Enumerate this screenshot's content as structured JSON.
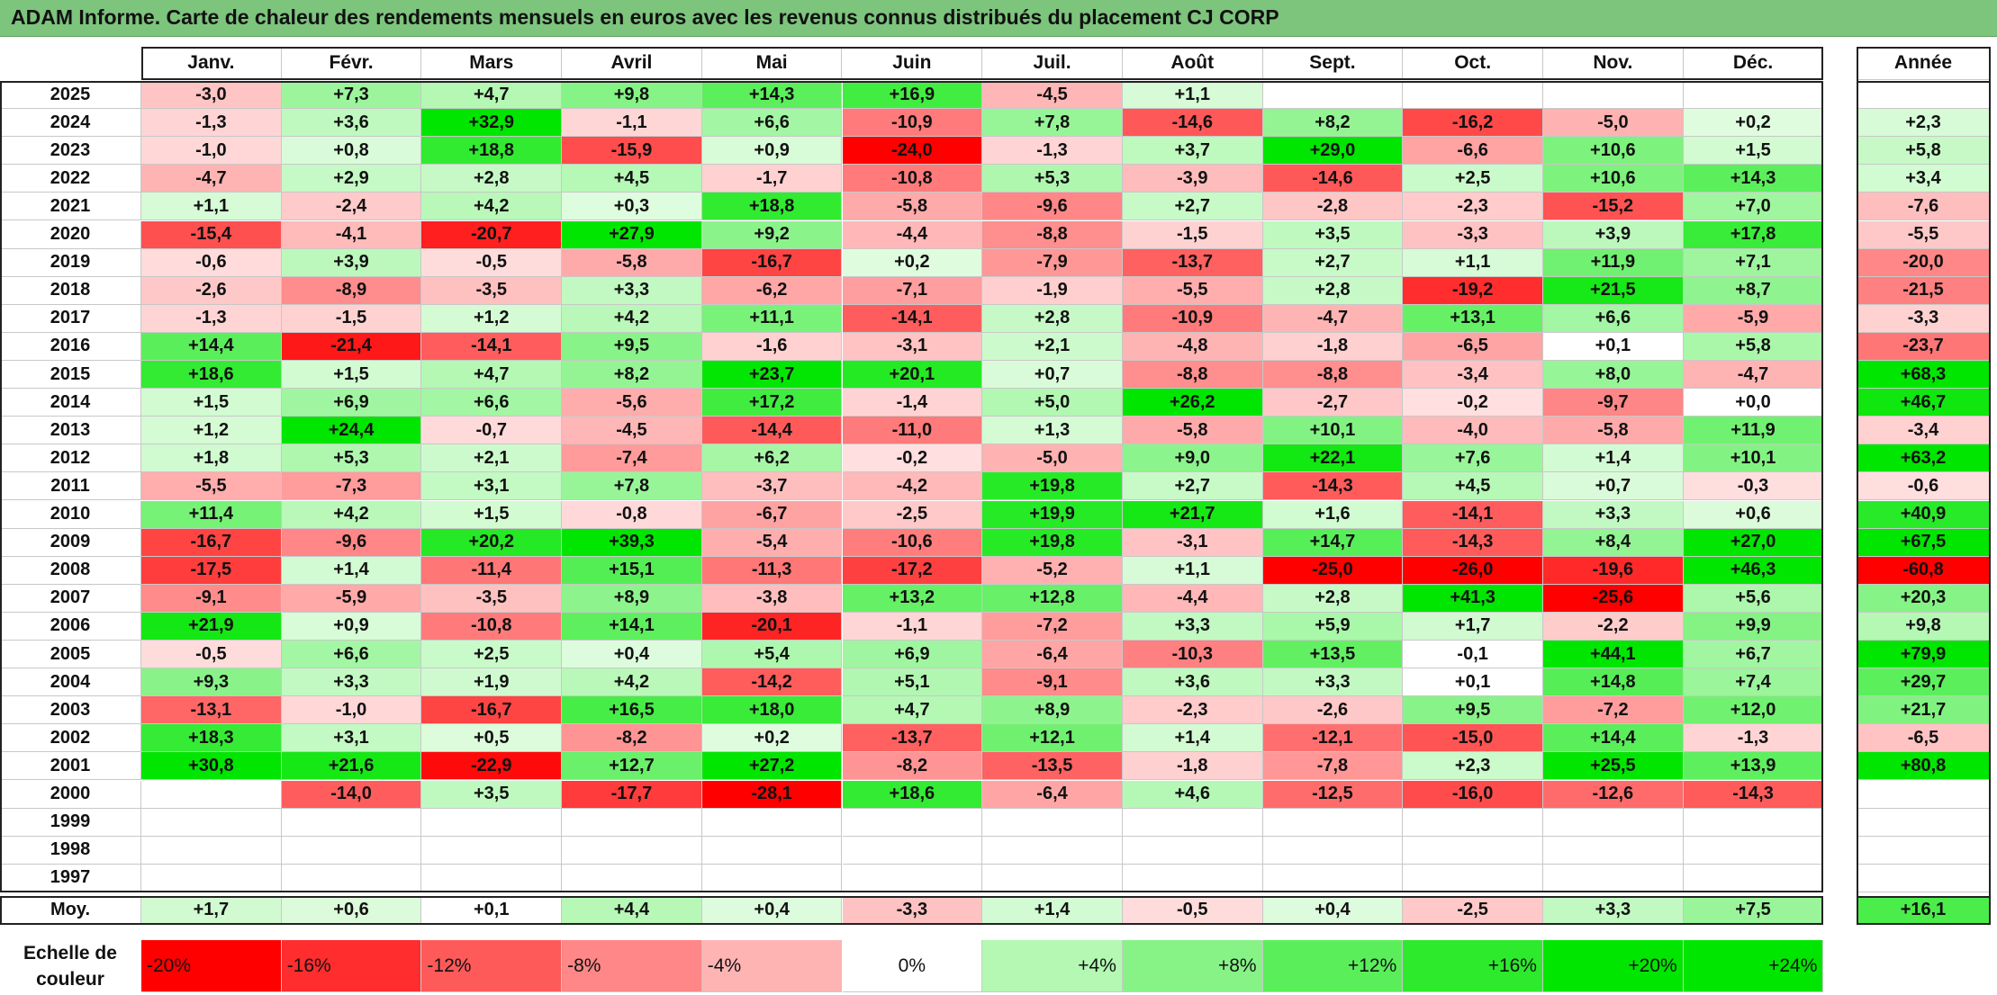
{
  "title": "ADAM Informe. Carte de chaleur des rendements mensuels en euros avec les revenus connus distribués du placement CJ CORP",
  "colors": {
    "title_bg": "#7dc47d",
    "neg": "#ff0000",
    "pos": "#00e000",
    "neutral": "#ffffff"
  },
  "chart_data": {
    "type": "heatmap",
    "title": "ADAM Informe. Carte de chaleur des rendements mensuels en euros avec les revenus connus distribués du placement CJ CORP",
    "months": [
      "Janv.",
      "Févr.",
      "Mars",
      "Avril",
      "Mai",
      "Juin",
      "Juil.",
      "Août",
      "Sept.",
      "Oct.",
      "Nov.",
      "Déc."
    ],
    "year_header": "Année",
    "rows": [
      {
        "year": "2025",
        "values": [
          "-3,0",
          "+7,3",
          "+4,7",
          "+9,8",
          "+14,3",
          "+16,9",
          "-4,5",
          "+1,1",
          "",
          "",
          "",
          ""
        ],
        "annual": ""
      },
      {
        "year": "2024",
        "values": [
          "-1,3",
          "+3,6",
          "+32,9",
          "-1,1",
          "+6,6",
          "-10,9",
          "+7,8",
          "-14,6",
          "+8,2",
          "-16,2",
          "-5,0",
          "+0,2"
        ],
        "annual": "+2,3"
      },
      {
        "year": "2023",
        "values": [
          "-1,0",
          "+0,8",
          "+18,8",
          "-15,9",
          "+0,9",
          "-24,0",
          "-1,3",
          "+3,7",
          "+29,0",
          "-6,6",
          "+10,6",
          "+1,5"
        ],
        "annual": "+5,8"
      },
      {
        "year": "2022",
        "values": [
          "-4,7",
          "+2,9",
          "+2,8",
          "+4,5",
          "-1,7",
          "-10,8",
          "+5,3",
          "-3,9",
          "-14,6",
          "+2,5",
          "+10,6",
          "+14,3"
        ],
        "annual": "+3,4"
      },
      {
        "year": "2021",
        "values": [
          "+1,1",
          "-2,4",
          "+4,2",
          "+0,3",
          "+18,8",
          "-5,8",
          "-9,6",
          "+2,7",
          "-2,8",
          "-2,3",
          "-15,2",
          "+7,0"
        ],
        "annual": "-7,6"
      },
      {
        "year": "2020",
        "values": [
          "-15,4",
          "-4,1",
          "-20,7",
          "+27,9",
          "+9,2",
          "-4,4",
          "-8,8",
          "-1,5",
          "+3,5",
          "-3,3",
          "+3,9",
          "+17,8"
        ],
        "annual": "-5,5"
      },
      {
        "year": "2019",
        "values": [
          "-0,6",
          "+3,9",
          "-0,5",
          "-5,8",
          "-16,7",
          "+0,2",
          "-7,9",
          "-13,7",
          "+2,7",
          "+1,1",
          "+11,9",
          "+7,1"
        ],
        "annual": "-20,0"
      },
      {
        "year": "2018",
        "values": [
          "-2,6",
          "-8,9",
          "-3,5",
          "+3,3",
          "-6,2",
          "-7,1",
          "-1,9",
          "-5,5",
          "+2,8",
          "-19,2",
          "+21,5",
          "+8,7"
        ],
        "annual": "-21,5"
      },
      {
        "year": "2017",
        "values": [
          "-1,3",
          "-1,5",
          "+1,2",
          "+4,2",
          "+11,1",
          "-14,1",
          "+2,8",
          "-10,9",
          "-4,7",
          "+13,1",
          "+6,6",
          "-5,9"
        ],
        "annual": "-3,3"
      },
      {
        "year": "2016",
        "values": [
          "+14,4",
          "-21,4",
          "-14,1",
          "+9,5",
          "-1,6",
          "-3,1",
          "+2,1",
          "-4,8",
          "-1,8",
          "-6,5",
          "+0,1",
          "+5,8"
        ],
        "annual": "-23,7"
      },
      {
        "year": "2015",
        "values": [
          "+18,6",
          "+1,5",
          "+4,7",
          "+8,2",
          "+23,7",
          "+20,1",
          "+0,7",
          "-8,8",
          "-8,8",
          "-3,4",
          "+8,0",
          "-4,7"
        ],
        "annual": "+68,3"
      },
      {
        "year": "2014",
        "values": [
          "+1,5",
          "+6,9",
          "+6,6",
          "-5,6",
          "+17,2",
          "-1,4",
          "+5,0",
          "+26,2",
          "-2,7",
          "-0,2",
          "-9,7",
          "+0,0"
        ],
        "annual": "+46,7"
      },
      {
        "year": "2013",
        "values": [
          "+1,2",
          "+24,4",
          "-0,7",
          "-4,5",
          "-14,4",
          "-11,0",
          "+1,3",
          "-5,8",
          "+10,1",
          "-4,0",
          "-5,8",
          "+11,9"
        ],
        "annual": "-3,4"
      },
      {
        "year": "2012",
        "values": [
          "+1,8",
          "+5,3",
          "+2,1",
          "-7,4",
          "+6,2",
          "-0,2",
          "-5,0",
          "+9,0",
          "+22,1",
          "+7,6",
          "+1,4",
          "+10,1"
        ],
        "annual": "+63,2"
      },
      {
        "year": "2011",
        "values": [
          "-5,5",
          "-7,3",
          "+3,1",
          "+7,8",
          "-3,7",
          "-4,2",
          "+19,8",
          "+2,7",
          "-14,3",
          "+4,5",
          "+0,7",
          "-0,3"
        ],
        "annual": "-0,6"
      },
      {
        "year": "2010",
        "values": [
          "+11,4",
          "+4,2",
          "+1,5",
          "-0,8",
          "-6,7",
          "-2,5",
          "+19,9",
          "+21,7",
          "+1,6",
          "-14,1",
          "+3,3",
          "+0,6"
        ],
        "annual": "+40,9"
      },
      {
        "year": "2009",
        "values": [
          "-16,7",
          "-9,6",
          "+20,2",
          "+39,3",
          "-5,4",
          "-10,6",
          "+19,8",
          "-3,1",
          "+14,7",
          "-14,3",
          "+8,4",
          "+27,0"
        ],
        "annual": "+67,5"
      },
      {
        "year": "2008",
        "values": [
          "-17,5",
          "+1,4",
          "-11,4",
          "+15,1",
          "-11,3",
          "-17,2",
          "-5,2",
          "+1,1",
          "-25,0",
          "-26,0",
          "-19,6",
          "+46,3"
        ],
        "annual": "-60,8"
      },
      {
        "year": "2007",
        "values": [
          "-9,1",
          "-5,9",
          "-3,5",
          "+8,9",
          "-3,8",
          "+13,2",
          "+12,8",
          "-4,4",
          "+2,8",
          "+41,3",
          "-25,6",
          "+5,6"
        ],
        "annual": "+20,3"
      },
      {
        "year": "2006",
        "values": [
          "+21,9",
          "+0,9",
          "-10,8",
          "+14,1",
          "-20,1",
          "-1,1",
          "-7,2",
          "+3,3",
          "+5,9",
          "+1,7",
          "-2,2",
          "+9,9"
        ],
        "annual": "+9,8"
      },
      {
        "year": "2005",
        "values": [
          "-0,5",
          "+6,6",
          "+2,5",
          "+0,4",
          "+5,4",
          "+6,9",
          "-6,4",
          "-10,3",
          "+13,5",
          "-0,1",
          "+44,1",
          "+6,7"
        ],
        "annual": "+79,9"
      },
      {
        "year": "2004",
        "values": [
          "+9,3",
          "+3,3",
          "+1,9",
          "+4,2",
          "-14,2",
          "+5,1",
          "-9,1",
          "+3,6",
          "+3,3",
          "+0,1",
          "+14,8",
          "+7,4"
        ],
        "annual": "+29,7"
      },
      {
        "year": "2003",
        "values": [
          "-13,1",
          "-1,0",
          "-16,7",
          "+16,5",
          "+18,0",
          "+4,7",
          "+8,9",
          "-2,3",
          "-2,6",
          "+9,5",
          "-7,2",
          "+12,0"
        ],
        "annual": "+21,7"
      },
      {
        "year": "2002",
        "values": [
          "+18,3",
          "+3,1",
          "+0,5",
          "-8,2",
          "+0,2",
          "-13,7",
          "+12,1",
          "+1,4",
          "-12,1",
          "-15,0",
          "+14,4",
          "-1,3"
        ],
        "annual": "-6,5"
      },
      {
        "year": "2001",
        "values": [
          "+30,8",
          "+21,6",
          "-22,9",
          "+12,7",
          "+27,2",
          "-8,2",
          "-13,5",
          "-1,8",
          "-7,8",
          "+2,3",
          "+25,5",
          "+13,9"
        ],
        "annual": "+80,8"
      },
      {
        "year": "2000",
        "values": [
          "",
          "-14,0",
          "+3,5",
          "-17,7",
          "-28,1",
          "+18,6",
          "-6,4",
          "+4,6",
          "-12,5",
          "-16,0",
          "-12,6",
          "-14,3"
        ],
        "annual": ""
      },
      {
        "year": "1999",
        "values": [
          "",
          "",
          "",
          "",
          "",
          "",
          "",
          "",
          "",
          "",
          "",
          ""
        ],
        "annual": ""
      },
      {
        "year": "1998",
        "values": [
          "",
          "",
          "",
          "",
          "",
          "",
          "",
          "",
          "",
          "",
          "",
          ""
        ],
        "annual": ""
      },
      {
        "year": "1997",
        "values": [
          "",
          "",
          "",
          "",
          "",
          "",
          "",
          "",
          "",
          "",
          "",
          ""
        ],
        "annual": ""
      }
    ],
    "average": {
      "label": "Moy.",
      "values": [
        "+1,7",
        "+0,6",
        "+0,1",
        "+4,4",
        "+0,4",
        "-3,3",
        "+1,4",
        "-0,5",
        "+0,4",
        "-2,5",
        "+3,3",
        "+7,5"
      ],
      "annual": "+16,1"
    },
    "color_scale": {
      "title": "Echelle de\ncouleur",
      "labels": [
        "-20%",
        "-16%",
        "-12%",
        "-8%",
        "-4%",
        "0%",
        "+4%",
        "+8%",
        "+12%",
        "+16%",
        "+20%",
        "+24%"
      ],
      "values": [
        -20,
        -16,
        -12,
        -8,
        -4,
        0,
        4,
        8,
        12,
        16,
        20,
        24
      ]
    }
  }
}
